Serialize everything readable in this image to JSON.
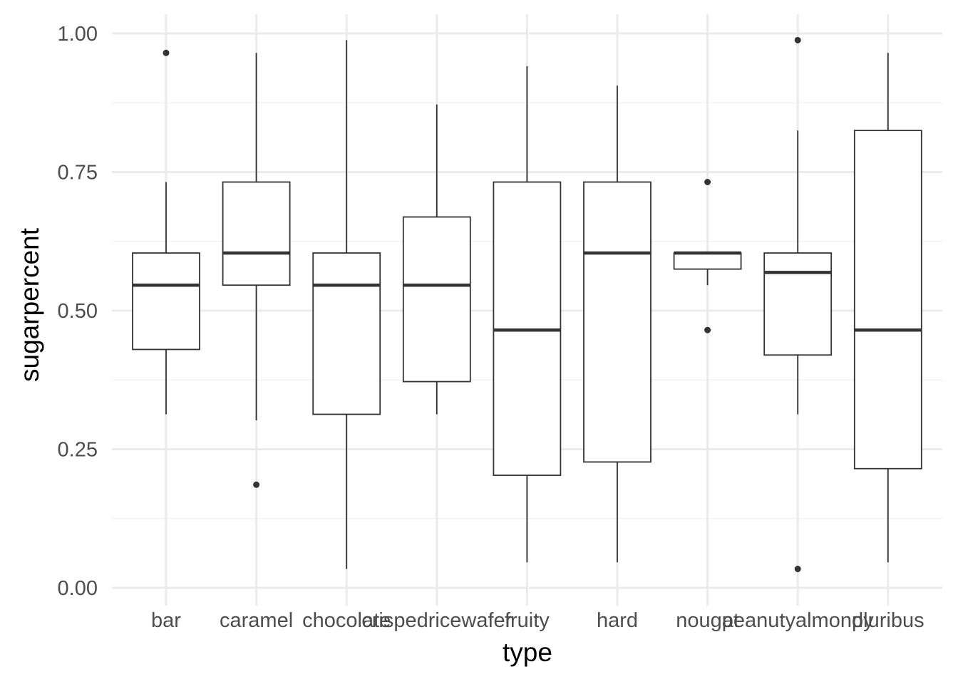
{
  "chart_data": {
    "type": "boxplot",
    "xlabel": "type",
    "ylabel": "sugarpercent",
    "ylim": [
      -0.02,
      1.04
    ],
    "y_ticks": [
      0.0,
      0.25,
      0.5,
      0.75,
      1.0
    ],
    "y_tick_labels": [
      "0.00",
      "0.25",
      "0.50",
      "0.75",
      "1.00"
    ],
    "grid": true,
    "legend": "none",
    "categories": [
      "bar",
      "caramel",
      "chocolate",
      "crispedricewafer",
      "fruity",
      "hard",
      "nougat",
      "peanutyalmondy",
      "pluribus"
    ],
    "boxes": [
      {
        "category": "bar",
        "whisker_low": 0.313,
        "q1": 0.43,
        "median": 0.546,
        "q3": 0.604,
        "whisker_high": 0.732,
        "outliers": [
          0.965
        ]
      },
      {
        "category": "caramel",
        "whisker_low": 0.302,
        "q1": 0.546,
        "median": 0.604,
        "q3": 0.732,
        "whisker_high": 0.965,
        "outliers": [
          0.186
        ]
      },
      {
        "category": "chocolate",
        "whisker_low": 0.034,
        "q1": 0.313,
        "median": 0.546,
        "q3": 0.604,
        "whisker_high": 0.988,
        "outliers": []
      },
      {
        "category": "crispedricewafer",
        "whisker_low": 0.313,
        "q1": 0.372,
        "median": 0.546,
        "q3": 0.669,
        "whisker_high": 0.872,
        "outliers": []
      },
      {
        "category": "fruity",
        "whisker_low": 0.046,
        "q1": 0.203,
        "median": 0.465,
        "q3": 0.732,
        "whisker_high": 0.941,
        "outliers": []
      },
      {
        "category": "hard",
        "whisker_low": 0.046,
        "q1": 0.227,
        "median": 0.604,
        "q3": 0.732,
        "whisker_high": 0.906,
        "outliers": []
      },
      {
        "category": "nougat",
        "whisker_low": 0.546,
        "q1": 0.575,
        "median": 0.604,
        "q3": 0.604,
        "whisker_high": 0.604,
        "outliers": [
          0.732,
          0.465
        ]
      },
      {
        "category": "peanutyalmondy",
        "whisker_low": 0.313,
        "q1": 0.42,
        "median": 0.569,
        "q3": 0.604,
        "whisker_high": 0.825,
        "outliers": [
          0.988,
          0.034
        ]
      },
      {
        "category": "pluribus",
        "whisker_low": 0.046,
        "q1": 0.215,
        "median": 0.465,
        "q3": 0.825,
        "whisker_high": 0.965,
        "outliers": []
      }
    ],
    "colors": {
      "grid_major": "#ebebeb",
      "grid_minor": "#f2f2f2",
      "box_stroke": "#333333",
      "box_fill": "#ffffff",
      "tick_text": "#4d4d4d",
      "title_text": "#000000"
    }
  }
}
